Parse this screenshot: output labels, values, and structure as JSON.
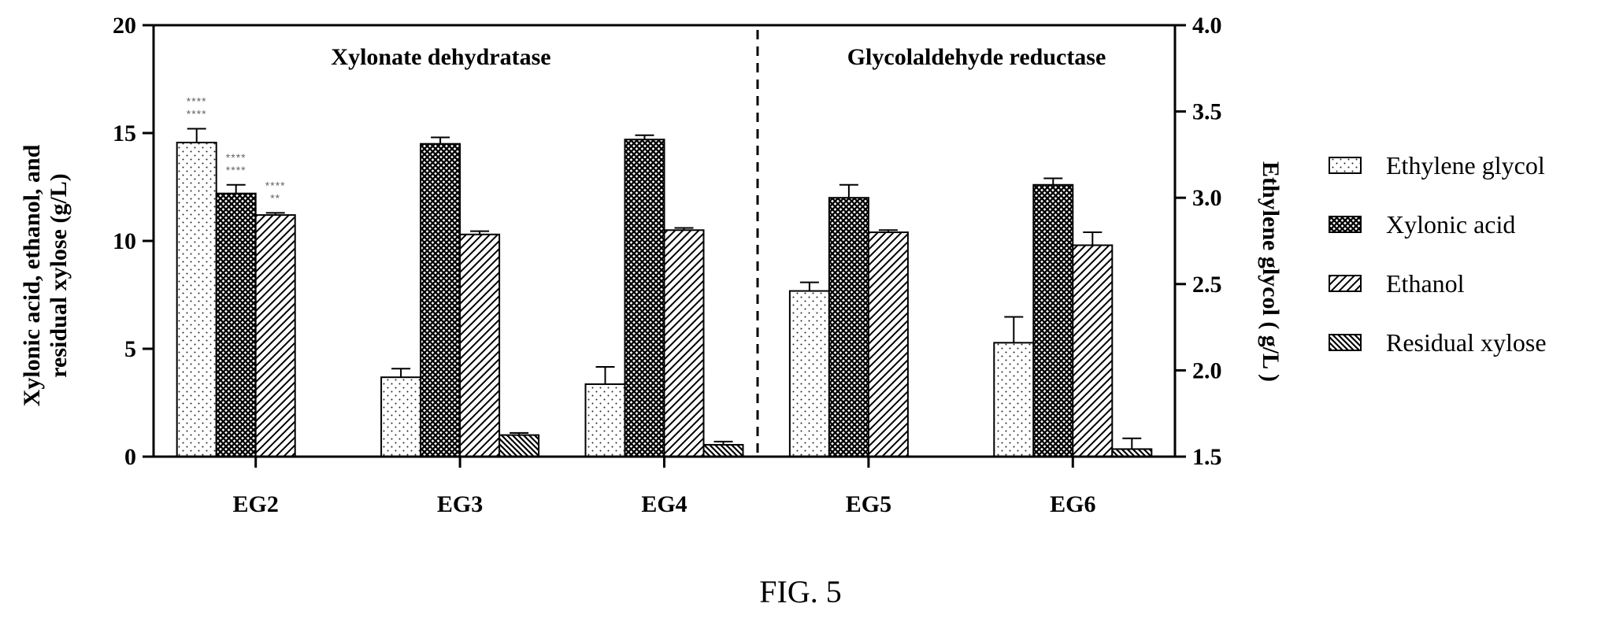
{
  "chart_data": {
    "type": "bar",
    "categories": [
      "EG2",
      "EG3",
      "EG4",
      "EG5",
      "EG6"
    ],
    "left_axis": {
      "label_lines": [
        "Xylonic acid, ethanol, and",
        "residual xylose (g/L)"
      ],
      "ylim": [
        0,
        20
      ],
      "ticks": [
        "0",
        "5",
        "10",
        "15",
        "20"
      ]
    },
    "right_axis": {
      "label": "Ethylene glycol ( g/L )",
      "ylim": [
        1.5,
        4.0
      ],
      "ticks": [
        "1.5",
        "2.0",
        "2.5",
        "3.0",
        "3.5",
        "4.0"
      ]
    },
    "sections": [
      "Xylonate dehydratase",
      "Glycolaldehyde reductase"
    ],
    "series": [
      {
        "name": "Ethylene glycol",
        "axis": "right",
        "pattern": "dots",
        "values": [
          3.32,
          1.96,
          1.92,
          2.46,
          2.16
        ],
        "errors": [
          0.08,
          0.05,
          0.1,
          0.05,
          0.15
        ]
      },
      {
        "name": "Xylonic acid",
        "axis": "left",
        "pattern": "crosshatch",
        "values": [
          12.2,
          14.5,
          14.7,
          12.0,
          12.6
        ],
        "errors": [
          0.4,
          0.3,
          0.2,
          0.6,
          0.3
        ]
      },
      {
        "name": "Ethanol",
        "axis": "left",
        "pattern": "diag",
        "values": [
          11.2,
          10.3,
          10.5,
          10.4,
          9.8
        ],
        "errors": [
          0.1,
          0.15,
          0.1,
          0.1,
          0.6
        ]
      },
      {
        "name": "Residual xylose",
        "axis": "left",
        "pattern": "diag-dense",
        "values": [
          0,
          1.0,
          0.55,
          0,
          0.35
        ],
        "errors": [
          0,
          0.1,
          0.15,
          0,
          0.5
        ]
      }
    ],
    "annotations": [
      {
        "category": "EG2",
        "series": "Ethylene glycol",
        "lines": [
          "****",
          "****"
        ]
      },
      {
        "category": "EG2",
        "series": "Xylonic acid",
        "lines": [
          "****",
          "****"
        ]
      },
      {
        "category": "EG2",
        "series": "Ethanol",
        "lines": [
          "****",
          "**"
        ]
      }
    ],
    "legend_placement": "right",
    "grid": false
  },
  "caption": "FIG. 5"
}
